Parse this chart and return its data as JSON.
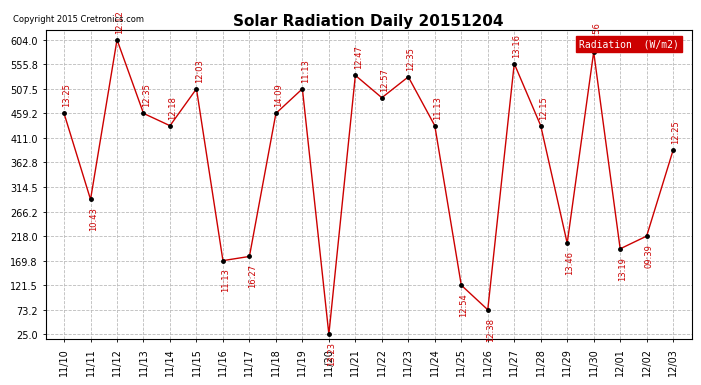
{
  "title": "Solar Radiation Daily 20151204",
  "copyright": "Copyright 2015 Cretronics.com",
  "legend_label": "Radiation  (W/m2)",
  "x_labels": [
    "11/10",
    "11/11",
    "11/12",
    "11/13",
    "11/14",
    "11/15",
    "11/16",
    "11/17",
    "11/18",
    "11/19",
    "11/20",
    "11/21",
    "11/22",
    "11/23",
    "11/24",
    "11/25",
    "11/26",
    "11/27",
    "11/28",
    "11/29",
    "11/30",
    "12/01",
    "12/02",
    "12/03"
  ],
  "y_values": [
    459.2,
    290.0,
    604.0,
    459.2,
    435.0,
    507.5,
    169.8,
    178.0,
    459.2,
    507.5,
    25.0,
    534.0,
    490.0,
    531.0,
    435.0,
    121.5,
    73.2,
    557.0,
    435.0,
    204.0,
    580.0,
    193.0,
    218.0,
    387.0
  ],
  "time_labels": [
    "13:25",
    "10:43",
    "12:12",
    "12:35",
    "12:18",
    "12:03",
    "11:13",
    "16:27",
    "14:09",
    "11:13",
    "13:23",
    "12:47",
    "12:57",
    "12:35",
    "11:13",
    "12:54",
    "12:38",
    "13:16",
    "12:15",
    "13:46",
    "11:56",
    "13:19",
    "09:39",
    "12:25"
  ],
  "ylim_min": 25.0,
  "ylim_max": 604.0,
  "yticks": [
    25.0,
    73.2,
    121.5,
    169.8,
    218.0,
    266.2,
    314.5,
    362.8,
    411.0,
    459.2,
    507.5,
    555.8,
    604.0
  ],
  "line_color": "#cc0000",
  "marker_color": "#000000",
  "bg_color": "#ffffff",
  "grid_color": "#bbbbbb",
  "title_fontsize": 11,
  "tick_fontsize": 7,
  "annot_fontsize": 6,
  "legend_bg": "#cc0000",
  "legend_fg": "#ffffff",
  "above_flags": [
    true,
    false,
    true,
    true,
    true,
    true,
    false,
    false,
    true,
    true,
    false,
    true,
    true,
    true,
    true,
    false,
    false,
    true,
    true,
    false,
    true,
    false,
    false,
    true
  ]
}
